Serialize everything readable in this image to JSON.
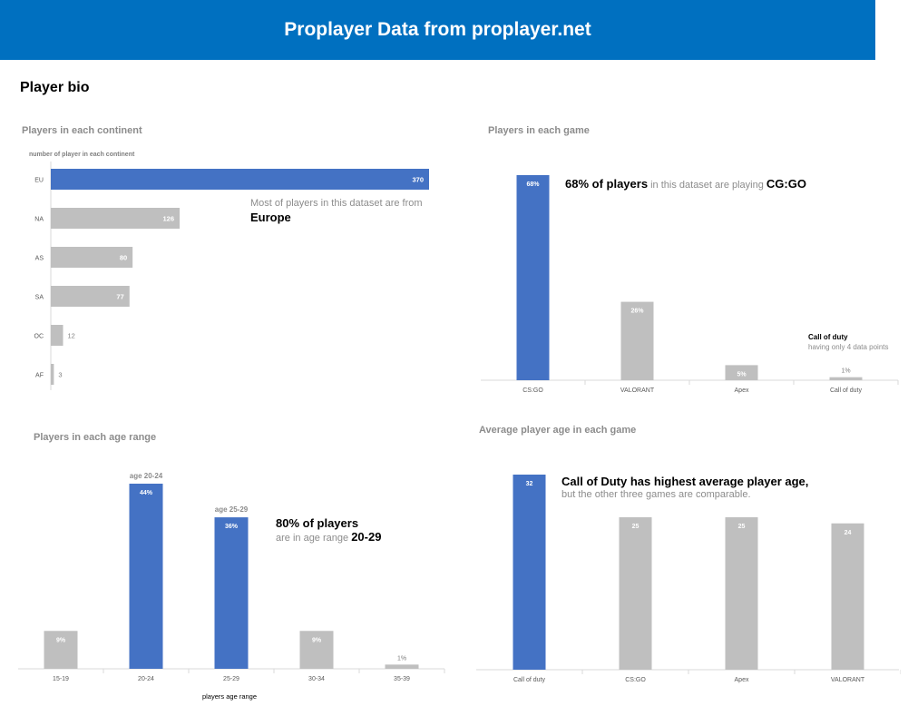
{
  "page": {
    "banner": "Proplayer Data from proplayer.net",
    "section": "Player bio"
  },
  "colors": {
    "highlight": "#4472c4",
    "muted": "#bfbfbf",
    "banner": "#0070c0"
  },
  "panels": {
    "continent": {
      "title": "Players in each continent",
      "note_line1": "Most of players in this dataset are from",
      "note_line2": "Europe"
    },
    "game": {
      "title": "Players in each game",
      "note_bold": "68% of players",
      "note_mid": "in this dataset are playing",
      "note_end": "CG:GO",
      "side_title": "Call of duty",
      "side_sub": "having only 4 data points"
    },
    "age": {
      "title": "Players in each age range",
      "note_line1": "80% of players",
      "note_line2a": "are in age range",
      "note_line2b": "20-29",
      "callouts": [
        "age 20-24",
        "age 25-29"
      ]
    },
    "avg": {
      "title": "Average player age in each game",
      "note_line1": "Call of Duty has highest average player age,",
      "note_line2": "but the other three games are comparable."
    }
  },
  "chart_data": [
    {
      "type": "bar",
      "orientation": "horizontal",
      "title": "Players in each continent",
      "ylabel": "number of player in each continent",
      "categories": [
        "EU",
        "NA",
        "AS",
        "SA",
        "OC",
        "AF"
      ],
      "values": [
        370,
        126,
        80,
        77,
        12,
        3
      ],
      "highlight": [
        0
      ],
      "labels": [
        "370",
        "126",
        "80",
        "77",
        "12",
        "3"
      ]
    },
    {
      "type": "bar",
      "title": "Players in each game",
      "categories": [
        "CS:GO",
        "VALORANT",
        "Apex",
        "Call of duty"
      ],
      "values": [
        68,
        26,
        5,
        1
      ],
      "unit": "%",
      "highlight": [
        0
      ],
      "labels": [
        "68%",
        "26%",
        "5%",
        "1%"
      ]
    },
    {
      "type": "bar",
      "title": "Players in each age range",
      "xlabel": "players age range",
      "categories": [
        "15-19",
        "20-24",
        "25-29",
        "30-34",
        "35-39"
      ],
      "values": [
        9,
        44,
        36,
        9,
        1
      ],
      "unit": "%",
      "highlight": [
        1,
        2
      ],
      "labels": [
        "9%",
        "44%",
        "36%",
        "9%",
        "1%"
      ]
    },
    {
      "type": "bar",
      "title": "Average player age in each game",
      "categories": [
        "Call of duty",
        "CS:GO",
        "Apex",
        "VALORANT"
      ],
      "values": [
        32,
        25,
        25,
        24
      ],
      "highlight": [
        0
      ],
      "labels": [
        "32",
        "25",
        "25",
        "24"
      ]
    }
  ]
}
